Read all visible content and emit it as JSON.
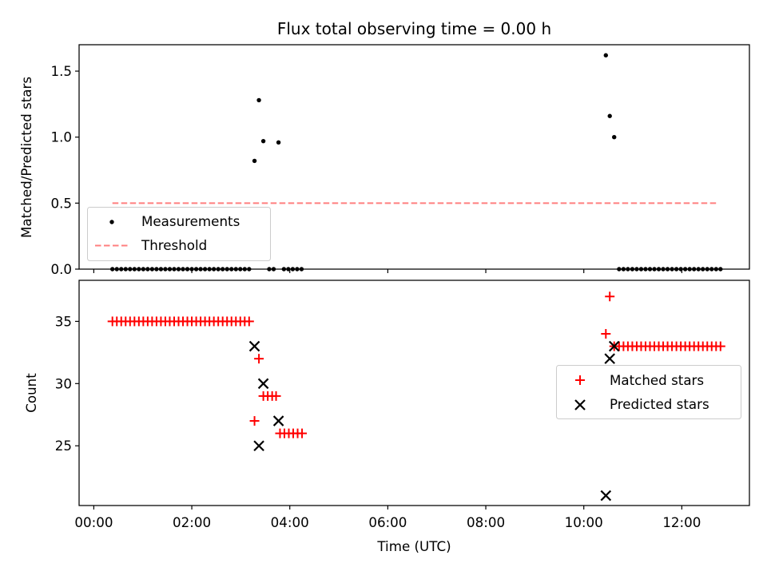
{
  "chart_data": [
    {
      "type": "scatter",
      "title": "Flux total observing time = 0.00 h",
      "xlabel": "",
      "ylabel": "Matched/Predicted stars",
      "ylim": [
        0,
        1.7
      ],
      "yticks": [
        "0.0",
        "0.5",
        "1.0",
        "1.5"
      ],
      "legend_position": "lower-left",
      "series": [
        {
          "name": "Measurements",
          "marker": "dot",
          "color": "#000000",
          "points": [
            [
              0.38,
              0
            ],
            [
              0.47,
              0
            ],
            [
              0.56,
              0
            ],
            [
              0.65,
              0
            ],
            [
              0.74,
              0
            ],
            [
              0.83,
              0
            ],
            [
              0.92,
              0
            ],
            [
              1.01,
              0
            ],
            [
              1.1,
              0
            ],
            [
              1.19,
              0
            ],
            [
              1.28,
              0
            ],
            [
              1.37,
              0
            ],
            [
              1.46,
              0
            ],
            [
              1.55,
              0
            ],
            [
              1.64,
              0
            ],
            [
              1.73,
              0
            ],
            [
              1.82,
              0
            ],
            [
              1.91,
              0
            ],
            [
              2.0,
              0
            ],
            [
              2.09,
              0
            ],
            [
              2.18,
              0
            ],
            [
              2.27,
              0
            ],
            [
              2.36,
              0
            ],
            [
              2.45,
              0
            ],
            [
              2.54,
              0
            ],
            [
              2.63,
              0
            ],
            [
              2.72,
              0
            ],
            [
              2.81,
              0
            ],
            [
              2.9,
              0
            ],
            [
              2.99,
              0
            ],
            [
              3.08,
              0
            ],
            [
              3.17,
              0
            ],
            [
              3.28,
              0.82
            ],
            [
              3.37,
              1.28
            ],
            [
              3.46,
              0.97
            ],
            [
              3.58,
              0
            ],
            [
              3.67,
              0
            ],
            [
              3.77,
              0.96
            ],
            [
              3.88,
              0
            ],
            [
              3.97,
              0
            ],
            [
              4.06,
              0
            ],
            [
              4.15,
              0
            ],
            [
              4.24,
              0
            ],
            [
              10.45,
              1.62
            ],
            [
              10.53,
              1.16
            ],
            [
              10.62,
              1.0
            ],
            [
              10.72,
              0
            ],
            [
              10.81,
              0
            ],
            [
              10.9,
              0
            ],
            [
              10.99,
              0
            ],
            [
              11.08,
              0
            ],
            [
              11.17,
              0
            ],
            [
              11.26,
              0
            ],
            [
              11.35,
              0
            ],
            [
              11.44,
              0
            ],
            [
              11.53,
              0
            ],
            [
              11.62,
              0
            ],
            [
              11.71,
              0
            ],
            [
              11.8,
              0
            ],
            [
              11.89,
              0
            ],
            [
              11.98,
              0
            ],
            [
              12.07,
              0
            ],
            [
              12.16,
              0
            ],
            [
              12.25,
              0
            ],
            [
              12.34,
              0
            ],
            [
              12.43,
              0
            ],
            [
              12.52,
              0
            ],
            [
              12.61,
              0
            ],
            [
              12.7,
              0
            ],
            [
              12.79,
              0
            ]
          ]
        },
        {
          "name": "Threshold",
          "line": "dashed",
          "color": "#ff7f7f",
          "points": [
            [
              0.38,
              0.5
            ],
            [
              12.7,
              0.5
            ]
          ]
        }
      ]
    },
    {
      "type": "scatter",
      "xlabel": "Time (UTC)",
      "ylabel": "Count",
      "xlim": [
        -0.3,
        13.38
      ],
      "ylim": [
        20.2,
        38.3
      ],
      "xticks": [
        {
          "value": 0,
          "label": "00:00"
        },
        {
          "value": 2,
          "label": "02:00"
        },
        {
          "value": 4,
          "label": "04:00"
        },
        {
          "value": 6,
          "label": "06:00"
        },
        {
          "value": 8,
          "label": "08:00"
        },
        {
          "value": 10,
          "label": "10:00"
        },
        {
          "value": 12,
          "label": "12:00"
        }
      ],
      "yticks": [
        "25",
        "30",
        "35"
      ],
      "legend_position": "center-right",
      "series": [
        {
          "name": "Matched stars",
          "marker": "plus",
          "color": "#ff0000",
          "points": [
            [
              0.38,
              35
            ],
            [
              0.47,
              35
            ],
            [
              0.56,
              35
            ],
            [
              0.65,
              35
            ],
            [
              0.74,
              35
            ],
            [
              0.83,
              35
            ],
            [
              0.92,
              35
            ],
            [
              1.01,
              35
            ],
            [
              1.1,
              35
            ],
            [
              1.19,
              35
            ],
            [
              1.28,
              35
            ],
            [
              1.37,
              35
            ],
            [
              1.46,
              35
            ],
            [
              1.55,
              35
            ],
            [
              1.64,
              35
            ],
            [
              1.73,
              35
            ],
            [
              1.82,
              35
            ],
            [
              1.91,
              35
            ],
            [
              2.0,
              35
            ],
            [
              2.09,
              35
            ],
            [
              2.18,
              35
            ],
            [
              2.27,
              35
            ],
            [
              2.36,
              35
            ],
            [
              2.45,
              35
            ],
            [
              2.54,
              35
            ],
            [
              2.63,
              35
            ],
            [
              2.72,
              35
            ],
            [
              2.81,
              35
            ],
            [
              2.9,
              35
            ],
            [
              2.99,
              35
            ],
            [
              3.08,
              35
            ],
            [
              3.17,
              35
            ],
            [
              3.28,
              27
            ],
            [
              3.37,
              32
            ],
            [
              3.46,
              29
            ],
            [
              3.55,
              29
            ],
            [
              3.64,
              29
            ],
            [
              3.72,
              29
            ],
            [
              3.8,
              26
            ],
            [
              3.89,
              26
            ],
            [
              3.98,
              26
            ],
            [
              4.07,
              26
            ],
            [
              4.16,
              26
            ],
            [
              4.25,
              26
            ],
            [
              10.45,
              34
            ],
            [
              10.53,
              37
            ],
            [
              10.62,
              33
            ],
            [
              10.72,
              33
            ],
            [
              10.81,
              33
            ],
            [
              10.9,
              33
            ],
            [
              10.99,
              33
            ],
            [
              11.08,
              33
            ],
            [
              11.17,
              33
            ],
            [
              11.26,
              33
            ],
            [
              11.35,
              33
            ],
            [
              11.44,
              33
            ],
            [
              11.53,
              33
            ],
            [
              11.62,
              33
            ],
            [
              11.71,
              33
            ],
            [
              11.8,
              33
            ],
            [
              11.89,
              33
            ],
            [
              11.98,
              33
            ],
            [
              12.07,
              33
            ],
            [
              12.16,
              33
            ],
            [
              12.25,
              33
            ],
            [
              12.34,
              33
            ],
            [
              12.43,
              33
            ],
            [
              12.52,
              33
            ],
            [
              12.61,
              33
            ],
            [
              12.7,
              33
            ],
            [
              12.79,
              33
            ]
          ]
        },
        {
          "name": "Predicted stars",
          "marker": "x",
          "color": "#000000",
          "points": [
            [
              3.28,
              33
            ],
            [
              3.37,
              25
            ],
            [
              3.46,
              30
            ],
            [
              3.77,
              27
            ],
            [
              10.45,
              21
            ],
            [
              10.53,
              32
            ],
            [
              10.62,
              33
            ]
          ]
        }
      ]
    }
  ]
}
